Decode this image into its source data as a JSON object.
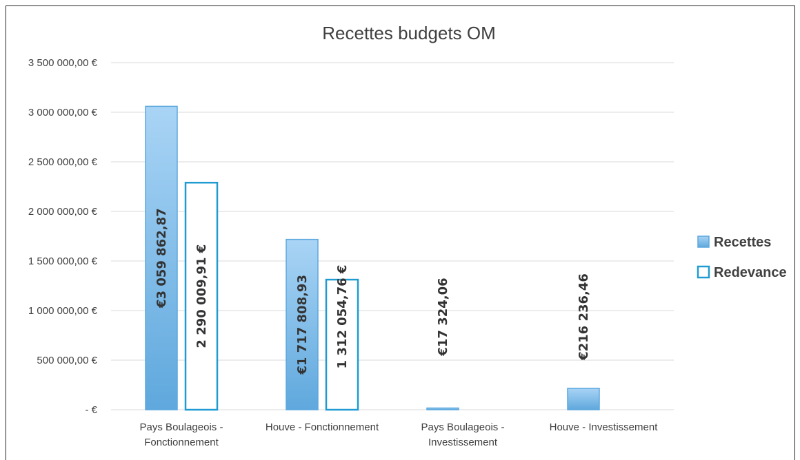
{
  "chart_data": {
    "type": "bar",
    "title": "Recettes budgets OM",
    "categories": [
      [
        "Pays Boulageois -",
        "Fonctionnement"
      ],
      [
        "Houve - Fonctionnement"
      ],
      [
        "Pays Boulageois -",
        "Investissement"
      ],
      [
        "Houve - Investissement"
      ]
    ],
    "ylim": [
      0,
      3500000
    ],
    "yticks": [
      {
        "value": 3500000,
        "label": "3 500 000,00 €"
      },
      {
        "value": 3000000,
        "label": "3 000 000,00 €"
      },
      {
        "value": 2500000,
        "label": "2 500 000,00 €"
      },
      {
        "value": 2000000,
        "label": "2 000 000,00 €"
      },
      {
        "value": 1500000,
        "label": "1 500 000,00 €"
      },
      {
        "value": 1000000,
        "label": "1 000 000,00 €"
      },
      {
        "value": 500000,
        "label": "500 000,00 €"
      },
      {
        "value": 0,
        "label": "-  €"
      }
    ],
    "grid": true,
    "legend_position": "right",
    "series": [
      {
        "name": "Recettes",
        "color": "#5BA7DE",
        "fill": "gradient-blue",
        "values": [
          3059862.87,
          1717808.93,
          17324.06,
          216236.46
        ],
        "labels": [
          "€3 059 862,87",
          "€1 717 808,93",
          "€17 324,06",
          "€216 236,46"
        ]
      },
      {
        "name": "Redevance",
        "color": "#1F9BD1",
        "fill": "white",
        "values": [
          2290009.91,
          1312054.76,
          null,
          null
        ],
        "labels": [
          "2 290 009,91 €",
          "1 312 054,76 €",
          null,
          null
        ]
      }
    ]
  }
}
